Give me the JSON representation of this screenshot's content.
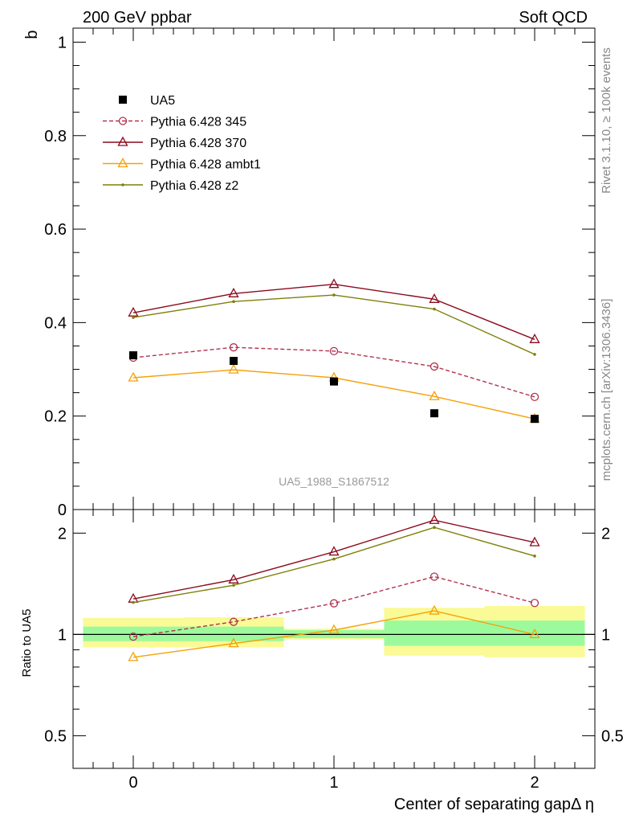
{
  "header": {
    "left": "200 GeV ppbar",
    "right": "Soft QCD"
  },
  "side_labels": {
    "rivet": "Rivet 3.1.10, ≥ 100k events",
    "source": "mcplots.cern.ch [arXiv:1306.3436]"
  },
  "chart_data": [
    {
      "type": "line",
      "panel": "main",
      "ylabel": "b",
      "xlabel": "Center of separating gapΔ η",
      "xlim": [
        -0.3,
        2.3
      ],
      "ylim": [
        0,
        1.03
      ],
      "y_ticks": [
        {
          "v": 0,
          "label": "0"
        },
        {
          "v": 0.2,
          "label": "0.2"
        },
        {
          "v": 0.4,
          "label": "0.4"
        },
        {
          "v": 0.6,
          "label": "0.6"
        },
        {
          "v": 0.8,
          "label": "0.8"
        },
        {
          "v": 1,
          "label": "1"
        }
      ],
      "x": [
        0,
        0.5,
        1,
        1.5,
        2
      ],
      "watermark": "UA5_1988_S1867512",
      "legend_position": "top-left",
      "data": {
        "name": "UA5",
        "values": [
          0.33,
          0.318,
          0.274,
          0.206,
          0.194
        ],
        "color": "#000000"
      },
      "series": [
        {
          "name": "Pythia 6.428 345",
          "values": [
            0.325,
            0.347,
            0.339,
            0.306,
            0.241
          ],
          "color": "#b2334f",
          "style": "dashed",
          "marker": "circle"
        },
        {
          "name": "Pythia 6.428 370",
          "values": [
            0.421,
            0.462,
            0.482,
            0.45,
            0.364
          ],
          "color": "#8b0a1e",
          "style": "solid",
          "marker": "triangle"
        },
        {
          "name": "Pythia 6.428 ambt1",
          "values": [
            0.282,
            0.299,
            0.282,
            0.242,
            0.194
          ],
          "color": "#f5a10a",
          "style": "solid",
          "marker": "triangle"
        },
        {
          "name": "Pythia 6.428 z2",
          "values": [
            0.411,
            0.445,
            0.459,
            0.429,
            0.332
          ],
          "color": "#7f7f0a",
          "style": "solid",
          "marker": "dot"
        }
      ]
    },
    {
      "type": "line",
      "panel": "ratio",
      "ylabel": "Ratio to UA5",
      "xlabel": "Center of separating gapΔ η",
      "xlim": [
        -0.3,
        2.3
      ],
      "ylim": [
        0.4,
        2.35
      ],
      "y_scale": "log",
      "y_ticks": [
        {
          "v": 0.5,
          "label": "0.5"
        },
        {
          "v": 1,
          "label": "1"
        },
        {
          "v": 2,
          "label": "2"
        }
      ],
      "x_ticks": [
        {
          "v": 0,
          "label": "0"
        },
        {
          "v": 1,
          "label": "1"
        },
        {
          "v": 2,
          "label": "2"
        }
      ],
      "x": [
        0,
        0.5,
        1,
        1.5,
        2
      ],
      "bands": {
        "bin_edges": [
          [
            -0.25,
            0.25
          ],
          [
            0.25,
            0.75
          ],
          [
            0.75,
            1.25
          ],
          [
            1.25,
            1.75
          ],
          [
            1.75,
            2.25
          ]
        ],
        "inner": [
          [
            0.955,
            1.055
          ],
          [
            0.955,
            1.055
          ],
          [
            0.975,
            1.03
          ],
          [
            0.925,
            1.1
          ],
          [
            0.925,
            1.1
          ]
        ],
        "outer": [
          [
            0.915,
            1.12
          ],
          [
            0.915,
            1.125
          ],
          [
            0.965,
            1.04
          ],
          [
            0.865,
            1.2
          ],
          [
            0.855,
            1.215
          ]
        ],
        "inner_color": "#9cfa9c",
        "outer_color": "#fafa96"
      },
      "series": [
        {
          "name": "Pythia 6.428 345",
          "values": [
            0.985,
            1.09,
            1.237,
            1.485,
            1.24
          ],
          "color": "#b2334f",
          "style": "dashed",
          "marker": "circle"
        },
        {
          "name": "Pythia 6.428 370",
          "values": [
            1.275,
            1.454,
            1.76,
            2.185,
            1.876
          ],
          "color": "#8b0a1e",
          "style": "solid",
          "marker": "triangle"
        },
        {
          "name": "Pythia 6.428 ambt1",
          "values": [
            0.855,
            0.94,
            1.03,
            1.175,
            1.0
          ],
          "color": "#f5a10a",
          "style": "solid",
          "marker": "triangle"
        },
        {
          "name": "Pythia 6.428 z2",
          "values": [
            1.245,
            1.4,
            1.675,
            2.08,
            1.71
          ],
          "color": "#7f7f0a",
          "style": "solid",
          "marker": "dot"
        }
      ]
    }
  ]
}
